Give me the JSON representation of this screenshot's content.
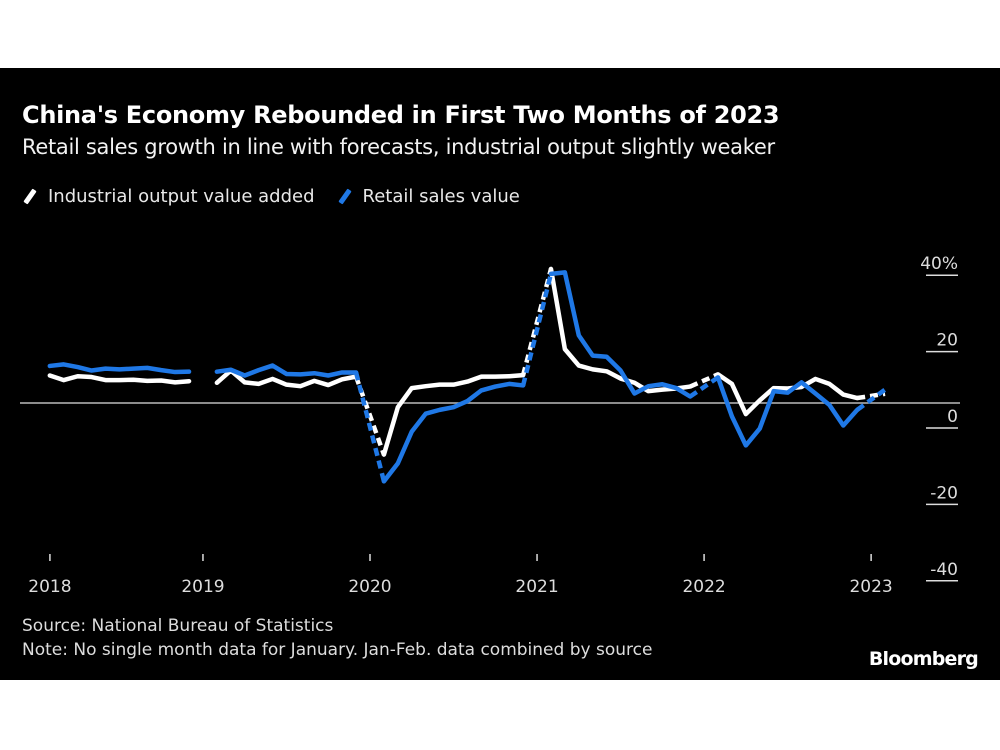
{
  "header": {
    "title": "China's Economy Rebounded in First Two Months of 2023",
    "subtitle": "Retail sales growth in line with forecasts, industrial output slightly weaker"
  },
  "footer": {
    "source": "Source: National Bureau of Statistics",
    "note": "Note: No single month data for January. Jan-Feb. data combined by source",
    "logo": "Bloomberg"
  },
  "colors": {
    "background": "#000000",
    "industrial": "#ffffff",
    "retail": "#1f78e6",
    "zero_line": "#bbbbbb"
  },
  "chart_data": {
    "type": "line",
    "title": "China's Economy Rebounded in First Two Months of 2023",
    "subtitle": "Retail sales growth in line with forecasts, industrial output slightly weaker",
    "xlabel": "",
    "ylabel": "",
    "ylim": [
      -40,
      40
    ],
    "yticks": [
      "40%",
      "20",
      "0",
      "-20",
      "-40"
    ],
    "ytick_values": [
      40,
      20,
      0,
      -20,
      -40
    ],
    "xticks": [
      "2018",
      "2019",
      "2020",
      "2021",
      "2022",
      "2023"
    ],
    "legend": "top-left",
    "grid": false,
    "y_axis_position": "right",
    "x": [
      "2018-02",
      "2018-03",
      "2018-04",
      "2018-05",
      "2018-06",
      "2018-07",
      "2018-08",
      "2018-09",
      "2018-10",
      "2018-11",
      "2018-12",
      "2019-02",
      "2019-03",
      "2019-04",
      "2019-05",
      "2019-06",
      "2019-07",
      "2019-08",
      "2019-09",
      "2019-10",
      "2019-11",
      "2019-12",
      "2020-02",
      "2020-03",
      "2020-04",
      "2020-05",
      "2020-06",
      "2020-07",
      "2020-08",
      "2020-09",
      "2020-10",
      "2020-11",
      "2020-12",
      "2021-02",
      "2021-03",
      "2021-04",
      "2021-05",
      "2021-06",
      "2021-07",
      "2021-08",
      "2021-09",
      "2021-10",
      "2021-11",
      "2021-12",
      "2022-02",
      "2022-03",
      "2022-04",
      "2022-05",
      "2022-06",
      "2022-07",
      "2022-08",
      "2022-09",
      "2022-10",
      "2022-11",
      "2022-12",
      "2023-02"
    ],
    "series": [
      {
        "name": "Industrial output value added",
        "color": "#ffffff",
        "values": [
          7.2,
          6.0,
          7.0,
          6.8,
          6.0,
          6.0,
          6.1,
          5.8,
          5.9,
          5.4,
          5.7,
          5.3,
          8.5,
          5.4,
          5.0,
          6.3,
          4.8,
          4.4,
          5.8,
          4.7,
          6.2,
          6.9,
          -13.5,
          -1.1,
          3.9,
          4.4,
          4.8,
          4.8,
          5.6,
          6.9,
          6.9,
          7.0,
          7.3,
          35.1,
          14.1,
          9.8,
          8.8,
          8.3,
          6.4,
          5.3,
          3.1,
          3.5,
          3.8,
          4.3,
          7.5,
          5.0,
          -2.9,
          0.7,
          3.9,
          3.8,
          4.2,
          6.3,
          5.0,
          2.2,
          1.3,
          2.4
        ]
      },
      {
        "name": "Retail sales value",
        "color": "#1f78e6",
        "values": [
          9.7,
          10.1,
          9.4,
          8.5,
          9.0,
          8.8,
          9.0,
          9.2,
          8.6,
          8.1,
          8.2,
          8.2,
          8.7,
          7.2,
          8.6,
          9.8,
          7.6,
          7.5,
          7.8,
          7.2,
          8.0,
          8.0,
          -20.5,
          -15.8,
          -7.5,
          -2.8,
          -1.8,
          -1.1,
          0.5,
          3.3,
          4.3,
          5.0,
          4.6,
          33.8,
          34.2,
          17.7,
          12.4,
          12.1,
          8.5,
          2.5,
          4.4,
          4.9,
          3.9,
          1.7,
          6.7,
          -3.5,
          -11.1,
          -6.7,
          3.1,
          2.7,
          5.4,
          2.5,
          -0.5,
          -5.9,
          -1.8,
          3.5
        ]
      }
    ]
  }
}
